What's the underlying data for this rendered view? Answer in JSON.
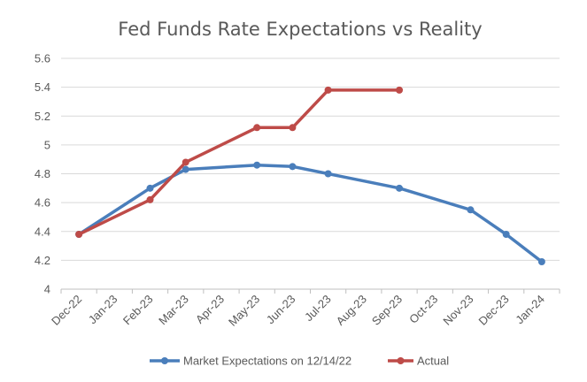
{
  "chart_data": {
    "type": "line",
    "title": "Fed Funds Rate Expectations vs Reality",
    "xlabel": "",
    "ylabel": "",
    "categories": [
      "Dec-22",
      "Jan-23",
      "Feb-23",
      "Mar-23",
      "Apr-23",
      "May-23",
      "Jun-23",
      "Jul-23",
      "Aug-23",
      "Sep-23",
      "Oct-23",
      "Nov-23",
      "Dec-23",
      "Jan-24"
    ],
    "y_ticks": [
      "4",
      "4.2",
      "4.4",
      "4.6",
      "4.8",
      "5",
      "5.2",
      "5.4",
      "5.6"
    ],
    "ylim": [
      4,
      5.6
    ],
    "grid": true,
    "legend_position": "bottom",
    "series": [
      {
        "name": "Market Expectations on 12/14/22",
        "color": "#4a7ebb",
        "points": [
          {
            "x": "Dec-22",
            "y": 4.38
          },
          {
            "x": "Feb-23",
            "y": 4.7
          },
          {
            "x": "Mar-23",
            "y": 4.83
          },
          {
            "x": "May-23",
            "y": 4.86
          },
          {
            "x": "Jun-23",
            "y": 4.85
          },
          {
            "x": "Jul-23",
            "y": 4.8
          },
          {
            "x": "Sep-23",
            "y": 4.7
          },
          {
            "x": "Nov-23",
            "y": 4.55
          },
          {
            "x": "Dec-23",
            "y": 4.38
          },
          {
            "x": "Jan-24",
            "y": 4.19
          }
        ]
      },
      {
        "name": "Actual",
        "color": "#be4b48",
        "points": [
          {
            "x": "Dec-22",
            "y": 4.38
          },
          {
            "x": "Feb-23",
            "y": 4.62
          },
          {
            "x": "Mar-23",
            "y": 4.88
          },
          {
            "x": "May-23",
            "y": 5.12
          },
          {
            "x": "Jun-23",
            "y": 5.12
          },
          {
            "x": "Jul-23",
            "y": 5.38
          },
          {
            "x": "Sep-23",
            "y": 5.38
          }
        ]
      }
    ]
  }
}
